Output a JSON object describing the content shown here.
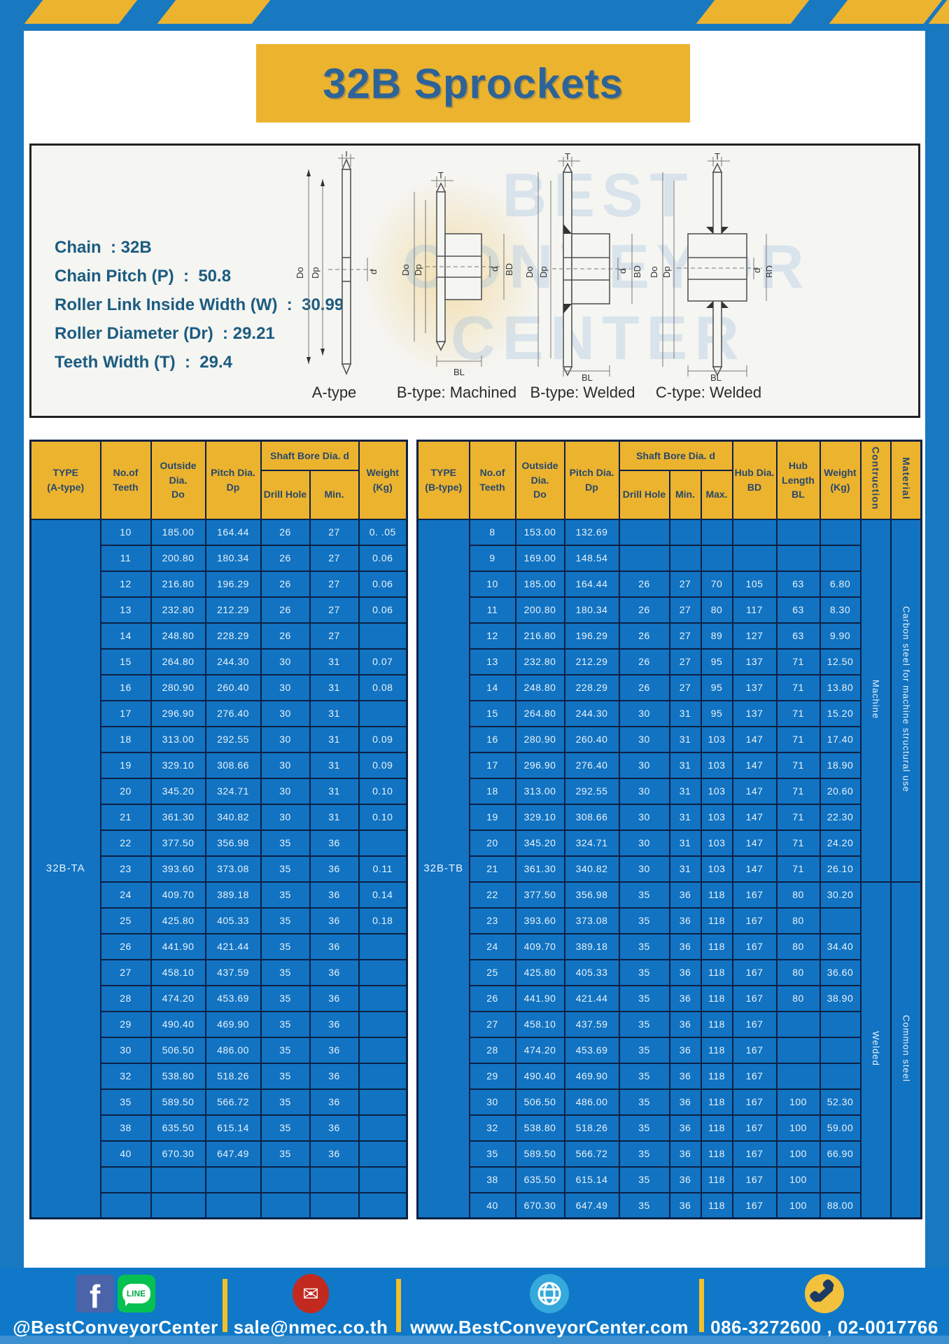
{
  "page": {
    "title": "32B Sprockets"
  },
  "colors": {
    "frame_blue": "#1878c0",
    "cell_blue": "#1173c2",
    "accent_yellow": "#ecb32f",
    "border_navy": "#0c2144",
    "title_blue": "#2d6397",
    "footer_blue": "#0f78c8"
  },
  "specs": {
    "lines": [
      "Chain  : 32B",
      "Chain Pitch (P)  :  50.8",
      "Roller Link Inside Width (W)  :  30.99",
      "Roller Diameter (Dr)  : 29.21",
      "Teeth Width (T)  :  29.4"
    ]
  },
  "diagram": {
    "captions": [
      "A-type",
      "B-type: Machined",
      "B-type: Welded",
      "C-type: Welded"
    ],
    "labels": {
      "t": "T",
      "do": "Do",
      "dp": "Dp",
      "d": "d",
      "bd": "BD",
      "bl": "BL"
    },
    "watermark": [
      "BEST",
      "CONVEYOR",
      "CENTER"
    ]
  },
  "table_a": {
    "type_label": "32B-TA",
    "header": {
      "type": "TYPE",
      "type_sub": "(A-type)",
      "teeth1": "No.of",
      "teeth2": "Teeth",
      "outside1": "Outside",
      "outside2": "Dia.",
      "outside3": "Do",
      "pitch1": "Pitch Dia.",
      "pitch2": "Dp",
      "shaft_bore": "Shaft Bore Dia. d",
      "drill": "Drill Hole",
      "min": "Min.",
      "weight1": "Weight",
      "weight2": "(Kg)"
    },
    "rows": [
      [
        "10",
        "185.00",
        "164.44",
        "26",
        "27",
        "0. .05"
      ],
      [
        "11",
        "200.80",
        "180.34",
        "26",
        "27",
        "0.06"
      ],
      [
        "12",
        "216.80",
        "196.29",
        "26",
        "27",
        "0.06"
      ],
      [
        "13",
        "232.80",
        "212.29",
        "26",
        "27",
        "0.06"
      ],
      [
        "14",
        "248.80",
        "228.29",
        "26",
        "27",
        ""
      ],
      [
        "15",
        "264.80",
        "244.30",
        "30",
        "31",
        "0.07"
      ],
      [
        "16",
        "280.90",
        "260.40",
        "30",
        "31",
        "0.08"
      ],
      [
        "17",
        "296.90",
        "276.40",
        "30",
        "31",
        ""
      ],
      [
        "18",
        "313.00",
        "292.55",
        "30",
        "31",
        "0.09"
      ],
      [
        "19",
        "329.10",
        "308.66",
        "30",
        "31",
        "0.09"
      ],
      [
        "20",
        "345.20",
        "324.71",
        "30",
        "31",
        "0.10"
      ],
      [
        "21",
        "361.30",
        "340.82",
        "30",
        "31",
        "0.10"
      ],
      [
        "22",
        "377.50",
        "356.98",
        "35",
        "36",
        ""
      ],
      [
        "23",
        "393.60",
        "373.08",
        "35",
        "36",
        "0.11"
      ],
      [
        "24",
        "409.70",
        "389.18",
        "35",
        "36",
        "0.14"
      ],
      [
        "25",
        "425.80",
        "405.33",
        "35",
        "36",
        "0.18"
      ],
      [
        "26",
        "441.90",
        "421.44",
        "35",
        "36",
        ""
      ],
      [
        "27",
        "458.10",
        "437.59",
        "35",
        "36",
        ""
      ],
      [
        "28",
        "474.20",
        "453.69",
        "35",
        "36",
        ""
      ],
      [
        "29",
        "490.40",
        "469.90",
        "35",
        "36",
        ""
      ],
      [
        "30",
        "506.50",
        "486.00",
        "35",
        "36",
        ""
      ],
      [
        "32",
        "538.80",
        "518.26",
        "35",
        "36",
        ""
      ],
      [
        "35",
        "589.50",
        "566.72",
        "35",
        "36",
        ""
      ],
      [
        "38",
        "635.50",
        "615.14",
        "35",
        "36",
        ""
      ],
      [
        "40",
        "670.30",
        "647.49",
        "35",
        "36",
        ""
      ],
      [
        "",
        "",
        "",
        "",
        "",
        ""
      ],
      [
        "",
        "",
        "",
        "",
        "",
        ""
      ]
    ]
  },
  "table_b": {
    "type_label": "32B-TB",
    "header": {
      "type": "TYPE",
      "type_sub": "(B-type)",
      "teeth1": "No.of",
      "teeth2": "Teeth",
      "outside1": "Outside",
      "outside2": "Dia.",
      "outside3": "Do",
      "pitch1": "Pitch Dia.",
      "pitch2": "Dp",
      "shaft_bore": "Shaft Bore Dia. d",
      "drill": "Drill Hole",
      "min": "Min.",
      "max": "Max.",
      "hub_dia1": "Hub Dia.",
      "hub_dia2": "BD",
      "hub_len1": "Hub",
      "hub_len2": "Length",
      "hub_len3": "BL",
      "weight1": "Weight",
      "weight2": "(Kg)",
      "construction": "Contruction",
      "material": "Material"
    },
    "sections": [
      {
        "construction": "Machine",
        "material": "Carbon steel for machine structural use",
        "row_span": 14
      },
      {
        "construction": "Welded",
        "material": "Common steel",
        "row_span": 13
      }
    ],
    "rows": [
      [
        "8",
        "153.00",
        "132.69",
        "",
        "",
        "",
        "",
        "",
        ""
      ],
      [
        "9",
        "169.00",
        "148.54",
        "",
        "",
        "",
        "",
        "",
        ""
      ],
      [
        "10",
        "185.00",
        "164.44",
        "26",
        "27",
        "70",
        "105",
        "63",
        "6.80"
      ],
      [
        "11",
        "200.80",
        "180.34",
        "26",
        "27",
        "80",
        "117",
        "63",
        "8.30"
      ],
      [
        "12",
        "216.80",
        "196.29",
        "26",
        "27",
        "89",
        "127",
        "63",
        "9.90"
      ],
      [
        "13",
        "232.80",
        "212.29",
        "26",
        "27",
        "95",
        "137",
        "71",
        "12.50"
      ],
      [
        "14",
        "248.80",
        "228.29",
        "26",
        "27",
        "95",
        "137",
        "71",
        "13.80"
      ],
      [
        "15",
        "264.80",
        "244.30",
        "30",
        "31",
        "95",
        "137",
        "71",
        "15.20"
      ],
      [
        "16",
        "280.90",
        "260.40",
        "30",
        "31",
        "103",
        "147",
        "71",
        "17.40"
      ],
      [
        "17",
        "296.90",
        "276.40",
        "30",
        "31",
        "103",
        "147",
        "71",
        "18.90"
      ],
      [
        "18",
        "313.00",
        "292.55",
        "30",
        "31",
        "103",
        "147",
        "71",
        "20.60"
      ],
      [
        "19",
        "329.10",
        "308.66",
        "30",
        "31",
        "103",
        "147",
        "71",
        "22.30"
      ],
      [
        "20",
        "345.20",
        "324.71",
        "30",
        "31",
        "103",
        "147",
        "71",
        "24.20"
      ],
      [
        "21",
        "361.30",
        "340.82",
        "30",
        "31",
        "103",
        "147",
        "71",
        "26.10"
      ],
      [
        "22",
        "377.50",
        "356.98",
        "35",
        "36",
        "118",
        "167",
        "80",
        "30.20"
      ],
      [
        "23",
        "393.60",
        "373.08",
        "35",
        "36",
        "118",
        "167",
        "80",
        ""
      ],
      [
        "24",
        "409.70",
        "389.18",
        "35",
        "36",
        "118",
        "167",
        "80",
        "34.40"
      ],
      [
        "25",
        "425.80",
        "405.33",
        "35",
        "36",
        "118",
        "167",
        "80",
        "36.60"
      ],
      [
        "26",
        "441.90",
        "421.44",
        "35",
        "36",
        "118",
        "167",
        "80",
        "38.90"
      ],
      [
        "27",
        "458.10",
        "437.59",
        "35",
        "36",
        "118",
        "167",
        "",
        ""
      ],
      [
        "28",
        "474.20",
        "453.69",
        "35",
        "36",
        "118",
        "167",
        "",
        ""
      ],
      [
        "29",
        "490.40",
        "469.90",
        "35",
        "36",
        "118",
        "167",
        "",
        ""
      ],
      [
        "30",
        "506.50",
        "486.00",
        "35",
        "36",
        "118",
        "167",
        "100",
        "52.30"
      ],
      [
        "32",
        "538.80",
        "518.26",
        "35",
        "36",
        "118",
        "167",
        "100",
        "59.00"
      ],
      [
        "35",
        "589.50",
        "566.72",
        "35",
        "36",
        "118",
        "167",
        "100",
        "66.90"
      ],
      [
        "38",
        "635.50",
        "615.14",
        "35",
        "36",
        "118",
        "167",
        "100",
        ""
      ],
      [
        "40",
        "670.30",
        "647.49",
        "35",
        "36",
        "118",
        "167",
        "100",
        "88.00"
      ]
    ]
  },
  "footer": {
    "social_handle": "@BestConveyorCenter",
    "line_badge": "LINE",
    "email": "sale@nmec.co.th",
    "website": "www.BestConveyorCenter.com",
    "phone": "086-3272600 , 02-0017766"
  }
}
